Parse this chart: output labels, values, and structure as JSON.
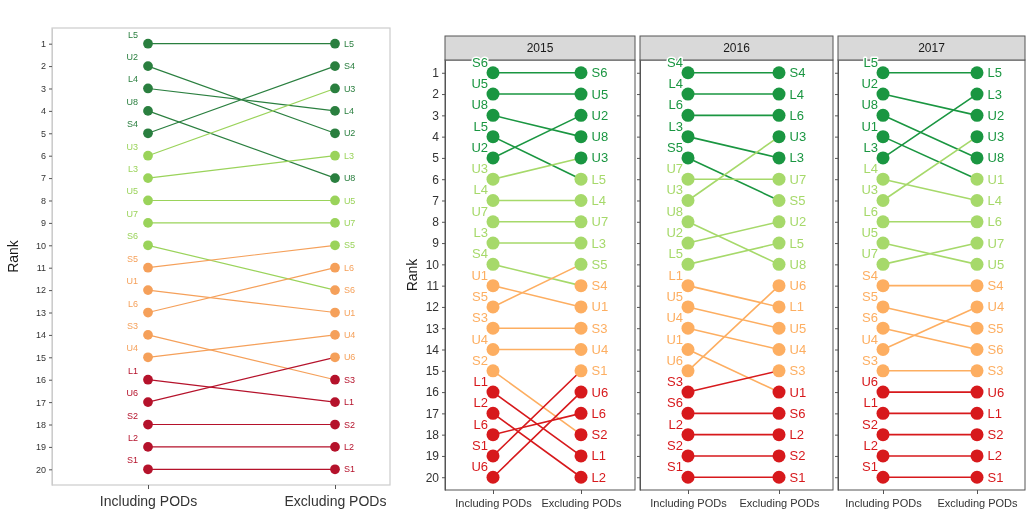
{
  "chart_data": [
    {
      "type": "line",
      "ylabel": "Rank",
      "categories": [
        "Including PODs",
        "Excluding PODs"
      ],
      "ylim": [
        20.7,
        0.3
      ],
      "yticks": [
        1,
        2,
        3,
        4,
        5,
        6,
        7,
        8,
        9,
        10,
        11,
        12,
        13,
        14,
        15,
        16,
        17,
        18,
        19,
        20
      ],
      "marker": "circle",
      "grid": false,
      "series": [
        {
          "name": "L5",
          "colors": [
            "#2a7f3f",
            "#2a7f3f"
          ],
          "values": [
            1,
            1
          ]
        },
        {
          "name": "U2",
          "colors": [
            "#2a7f3f",
            "#2a7f3f"
          ],
          "values": [
            2,
            5
          ]
        },
        {
          "name": "L4",
          "colors": [
            "#2a7f3f",
            "#2a7f3f"
          ],
          "values": [
            3,
            4
          ]
        },
        {
          "name": "U8",
          "colors": [
            "#2a7f3f",
            "#2a7f3f"
          ],
          "values": [
            4,
            7
          ]
        },
        {
          "name": "S4",
          "colors": [
            "#2a7f3f",
            "#2a7f3f"
          ],
          "values": [
            5,
            2
          ]
        },
        {
          "name": "U3",
          "colors": [
            "#9ad35a",
            "#2a7f3f"
          ],
          "values": [
            6,
            3
          ]
        },
        {
          "name": "L3",
          "colors": [
            "#9ad35a",
            "#9ad35a"
          ],
          "values": [
            7,
            6
          ]
        },
        {
          "name": "U5",
          "colors": [
            "#9ad35a",
            "#9ad35a"
          ],
          "values": [
            8,
            8
          ]
        },
        {
          "name": "U7",
          "colors": [
            "#9ad35a",
            "#9ad35a"
          ],
          "values": [
            9,
            9
          ]
        },
        {
          "name": "S6",
          "colors": [
            "#9ad35a",
            "#f5a05a"
          ],
          "values": [
            10,
            12
          ]
        },
        {
          "name": "S5",
          "colors": [
            "#f5a05a",
            "#9ad35a"
          ],
          "values": [
            11,
            10
          ]
        },
        {
          "name": "U1",
          "colors": [
            "#f5a05a",
            "#f5a05a"
          ],
          "values": [
            12,
            13
          ]
        },
        {
          "name": "L6",
          "colors": [
            "#f5a05a",
            "#f5a05a"
          ],
          "values": [
            13,
            11
          ]
        },
        {
          "name": "S3",
          "colors": [
            "#f5a05a",
            "#b5122b"
          ],
          "values": [
            14,
            16
          ]
        },
        {
          "name": "U4",
          "colors": [
            "#f5a05a",
            "#f5a05a"
          ],
          "values": [
            15,
            14
          ]
        },
        {
          "name": "L1",
          "colors": [
            "#b5122b",
            "#b5122b"
          ],
          "values": [
            16,
            17
          ]
        },
        {
          "name": "U6",
          "colors": [
            "#b5122b",
            "#f5a05a"
          ],
          "values": [
            17,
            15
          ]
        },
        {
          "name": "S2",
          "colors": [
            "#b5122b",
            "#b5122b"
          ],
          "values": [
            18,
            18
          ]
        },
        {
          "name": "L2",
          "colors": [
            "#b5122b",
            "#b5122b"
          ],
          "values": [
            19,
            19
          ]
        },
        {
          "name": "S1",
          "colors": [
            "#b5122b",
            "#b5122b"
          ],
          "values": [
            20,
            20
          ]
        }
      ]
    },
    {
      "type": "line",
      "title": "2015",
      "ylabel": "Rank",
      "categories": [
        "Including PODs",
        "Excluding PODs"
      ],
      "ylim": [
        20.6,
        0.4
      ],
      "yticks": [
        1,
        2,
        3,
        4,
        5,
        6,
        7,
        8,
        9,
        10,
        11,
        12,
        13,
        14,
        15,
        16,
        17,
        18,
        19,
        20
      ],
      "marker": "circle",
      "grid": false,
      "series": [
        {
          "name": "S6",
          "colors": [
            "#1a9641",
            "#1a9641"
          ],
          "values": [
            1,
            1
          ]
        },
        {
          "name": "U5",
          "colors": [
            "#1a9641",
            "#1a9641"
          ],
          "values": [
            2,
            2
          ]
        },
        {
          "name": "U8",
          "colors": [
            "#1a9641",
            "#1a9641"
          ],
          "values": [
            3,
            4
          ]
        },
        {
          "name": "L5",
          "colors": [
            "#1a9641",
            "#a6d96a"
          ],
          "values": [
            4,
            6
          ]
        },
        {
          "name": "U2",
          "colors": [
            "#1a9641",
            "#1a9641"
          ],
          "values": [
            5,
            3
          ]
        },
        {
          "name": "U3",
          "colors": [
            "#a6d96a",
            "#1a9641"
          ],
          "values": [
            6,
            5
          ]
        },
        {
          "name": "L4",
          "colors": [
            "#a6d96a",
            "#a6d96a"
          ],
          "values": [
            7,
            7
          ]
        },
        {
          "name": "U7",
          "colors": [
            "#a6d96a",
            "#a6d96a"
          ],
          "values": [
            8,
            8
          ]
        },
        {
          "name": "L3",
          "colors": [
            "#a6d96a",
            "#a6d96a"
          ],
          "values": [
            9,
            9
          ]
        },
        {
          "name": "S4",
          "colors": [
            "#a6d96a",
            "#fdae61"
          ],
          "values": [
            10,
            11
          ]
        },
        {
          "name": "U1",
          "colors": [
            "#fdae61",
            "#fdae61"
          ],
          "values": [
            11,
            12
          ]
        },
        {
          "name": "S5",
          "colors": [
            "#fdae61",
            "#a6d96a"
          ],
          "values": [
            12,
            10
          ]
        },
        {
          "name": "S3",
          "colors": [
            "#fdae61",
            "#fdae61"
          ],
          "values": [
            13,
            13
          ]
        },
        {
          "name": "U4",
          "colors": [
            "#fdae61",
            "#fdae61"
          ],
          "values": [
            14,
            14
          ]
        },
        {
          "name": "S2",
          "colors": [
            "#fdae61",
            "#d7191c"
          ],
          "values": [
            15,
            18
          ]
        },
        {
          "name": "L1",
          "colors": [
            "#d7191c",
            "#d7191c"
          ],
          "values": [
            16,
            19
          ]
        },
        {
          "name": "L2",
          "colors": [
            "#d7191c",
            "#d7191c"
          ],
          "values": [
            17,
            20
          ]
        },
        {
          "name": "L6",
          "colors": [
            "#d7191c",
            "#d7191c"
          ],
          "values": [
            18,
            17
          ]
        },
        {
          "name": "S1",
          "colors": [
            "#d7191c",
            "#fdae61"
          ],
          "values": [
            19,
            15
          ]
        },
        {
          "name": "U6",
          "colors": [
            "#d7191c",
            "#d7191c"
          ],
          "values": [
            20,
            16
          ]
        }
      ]
    },
    {
      "type": "line",
      "title": "2016",
      "categories": [
        "Including PODs",
        "Excluding PODs"
      ],
      "ylim": [
        20.6,
        0.4
      ],
      "yticks": [
        1,
        2,
        3,
        4,
        5,
        6,
        7,
        8,
        9,
        10,
        11,
        12,
        13,
        14,
        15,
        16,
        17,
        18,
        19,
        20
      ],
      "tick_labels": "x",
      "marker": "circle",
      "grid": false,
      "series": [
        {
          "name": "S4",
          "colors": [
            "#1a9641",
            "#1a9641"
          ],
          "values": [
            1,
            1
          ]
        },
        {
          "name": "L4",
          "colors": [
            "#1a9641",
            "#1a9641"
          ],
          "values": [
            2,
            2
          ]
        },
        {
          "name": "L6",
          "colors": [
            "#1a9641",
            "#1a9641"
          ],
          "values": [
            3,
            3
          ]
        },
        {
          "name": "L3",
          "colors": [
            "#1a9641",
            "#1a9641"
          ],
          "values": [
            4,
            5
          ]
        },
        {
          "name": "S5",
          "colors": [
            "#1a9641",
            "#a6d96a"
          ],
          "values": [
            5,
            7
          ]
        },
        {
          "name": "U7",
          "colors": [
            "#a6d96a",
            "#a6d96a"
          ],
          "values": [
            6,
            6
          ]
        },
        {
          "name": "U3",
          "colors": [
            "#a6d96a",
            "#1a9641"
          ],
          "values": [
            7,
            4
          ]
        },
        {
          "name": "U8",
          "colors": [
            "#a6d96a",
            "#a6d96a"
          ],
          "values": [
            8,
            10
          ]
        },
        {
          "name": "U2",
          "colors": [
            "#a6d96a",
            "#a6d96a"
          ],
          "values": [
            9,
            8
          ]
        },
        {
          "name": "L5",
          "colors": [
            "#a6d96a",
            "#a6d96a"
          ],
          "values": [
            10,
            9
          ]
        },
        {
          "name": "L1",
          "colors": [
            "#fdae61",
            "#fdae61"
          ],
          "values": [
            11,
            12
          ]
        },
        {
          "name": "U5",
          "colors": [
            "#fdae61",
            "#fdae61"
          ],
          "values": [
            12,
            13
          ]
        },
        {
          "name": "U4",
          "colors": [
            "#fdae61",
            "#fdae61"
          ],
          "values": [
            13,
            14
          ]
        },
        {
          "name": "U1",
          "colors": [
            "#fdae61",
            "#d7191c"
          ],
          "values": [
            14,
            16
          ]
        },
        {
          "name": "U6",
          "colors": [
            "#fdae61",
            "#fdae61"
          ],
          "values": [
            15,
            11
          ]
        },
        {
          "name": "S3",
          "colors": [
            "#d7191c",
            "#fdae61"
          ],
          "values": [
            16,
            15
          ]
        },
        {
          "name": "S6",
          "colors": [
            "#d7191c",
            "#d7191c"
          ],
          "values": [
            17,
            17
          ]
        },
        {
          "name": "L2",
          "colors": [
            "#d7191c",
            "#d7191c"
          ],
          "values": [
            18,
            18
          ]
        },
        {
          "name": "S2",
          "colors": [
            "#d7191c",
            "#d7191c"
          ],
          "values": [
            19,
            19
          ]
        },
        {
          "name": "S1",
          "colors": [
            "#d7191c",
            "#d7191c"
          ],
          "values": [
            20,
            20
          ]
        }
      ]
    },
    {
      "type": "line",
      "title": "2017",
      "categories": [
        "Including PODs",
        "Excluding PODs"
      ],
      "ylim": [
        20.6,
        0.4
      ],
      "yticks": [
        1,
        2,
        3,
        4,
        5,
        6,
        7,
        8,
        9,
        10,
        11,
        12,
        13,
        14,
        15,
        16,
        17,
        18,
        19,
        20
      ],
      "tick_labels": "x",
      "marker": "circle",
      "grid": false,
      "series": [
        {
          "name": "L5",
          "colors": [
            "#1a9641",
            "#1a9641"
          ],
          "values": [
            1,
            1
          ]
        },
        {
          "name": "U2",
          "colors": [
            "#1a9641",
            "#1a9641"
          ],
          "values": [
            2,
            3
          ]
        },
        {
          "name": "U8",
          "colors": [
            "#1a9641",
            "#1a9641"
          ],
          "values": [
            3,
            5
          ]
        },
        {
          "name": "U1",
          "colors": [
            "#1a9641",
            "#a6d96a"
          ],
          "values": [
            4,
            6
          ]
        },
        {
          "name": "L3",
          "colors": [
            "#1a9641",
            "#1a9641"
          ],
          "values": [
            5,
            2
          ]
        },
        {
          "name": "L4",
          "colors": [
            "#a6d96a",
            "#a6d96a"
          ],
          "values": [
            6,
            7
          ]
        },
        {
          "name": "U3",
          "colors": [
            "#a6d96a",
            "#1a9641"
          ],
          "values": [
            7,
            4
          ]
        },
        {
          "name": "L6",
          "colors": [
            "#a6d96a",
            "#a6d96a"
          ],
          "values": [
            8,
            8
          ]
        },
        {
          "name": "U5",
          "colors": [
            "#a6d96a",
            "#a6d96a"
          ],
          "values": [
            9,
            10
          ]
        },
        {
          "name": "U7",
          "colors": [
            "#a6d96a",
            "#a6d96a"
          ],
          "values": [
            10,
            9
          ]
        },
        {
          "name": "S4",
          "colors": [
            "#fdae61",
            "#fdae61"
          ],
          "values": [
            11,
            11
          ]
        },
        {
          "name": "S5",
          "colors": [
            "#fdae61",
            "#fdae61"
          ],
          "values": [
            12,
            13
          ]
        },
        {
          "name": "S6",
          "colors": [
            "#fdae61",
            "#fdae61"
          ],
          "values": [
            13,
            14
          ]
        },
        {
          "name": "U4",
          "colors": [
            "#fdae61",
            "#fdae61"
          ],
          "values": [
            14,
            12
          ]
        },
        {
          "name": "S3",
          "colors": [
            "#fdae61",
            "#fdae61"
          ],
          "values": [
            15,
            15
          ]
        },
        {
          "name": "U6",
          "colors": [
            "#d7191c",
            "#d7191c"
          ],
          "values": [
            16,
            16
          ]
        },
        {
          "name": "L1",
          "colors": [
            "#d7191c",
            "#d7191c"
          ],
          "values": [
            17,
            17
          ]
        },
        {
          "name": "S2",
          "colors": [
            "#d7191c",
            "#d7191c"
          ],
          "values": [
            18,
            18
          ]
        },
        {
          "name": "L2",
          "colors": [
            "#d7191c",
            "#d7191c"
          ],
          "values": [
            19,
            19
          ]
        },
        {
          "name": "S1",
          "colors": [
            "#d7191c",
            "#d7191c"
          ],
          "values": [
            20,
            20
          ]
        }
      ]
    }
  ]
}
